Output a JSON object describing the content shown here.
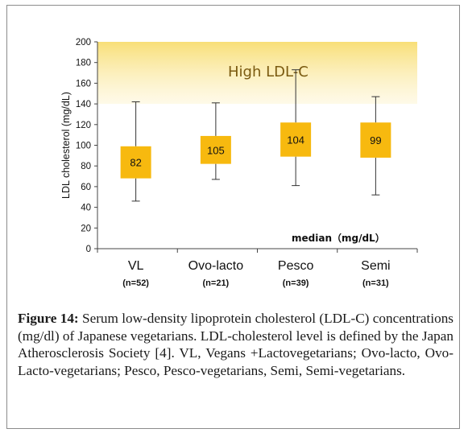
{
  "chart_data": {
    "type": "box",
    "ylabel": "LDL cholesterol (mg/dL)",
    "ylim": [
      0,
      200
    ],
    "yticks": [
      "0",
      "20",
      "40",
      "60",
      "80",
      "100",
      "120",
      "140",
      "160",
      "180",
      "200"
    ],
    "highlight_band": {
      "from": 140,
      "to": 200,
      "label": "High LDL-C",
      "color": "#f5c518"
    },
    "note": "median（mg/dL）",
    "box_color": "#f7b90f",
    "categories": [
      {
        "name": "VL",
        "n": "(n=52)",
        "min": 46,
        "q1": 68,
        "q3": 99,
        "max": 142,
        "median": 82,
        "median_label": "82"
      },
      {
        "name": "Ovo-lacto",
        "n": "(n=21)",
        "min": 67,
        "q1": 82,
        "q3": 109,
        "max": 141,
        "median": 105,
        "median_label": "105"
      },
      {
        "name": "Pesco",
        "n": "(n=39)",
        "min": 61,
        "q1": 89,
        "q3": 122,
        "max": 173,
        "median": 104,
        "median_label": "104"
      },
      {
        "name": "Semi",
        "n": "(n=31)",
        "min": 52,
        "q1": 88,
        "q3": 122,
        "max": 147,
        "median": 99,
        "median_label": "99"
      }
    ]
  },
  "caption": {
    "label": "Figure 14:",
    "text": " Serum low-density lipoprotein cholesterol (LDL-C) concentrations (mg/dl) of Japanese vegetarians. LDL-cholesterol level is defined by the Japan Atherosclerosis Society [4]. VL, Vegans +Lactovegetarians; Ovo-lacto, Ovo-Lacto-vegetarians; Pesco, Pesco-vegetarians, Semi, Semi-vegetarians."
  }
}
